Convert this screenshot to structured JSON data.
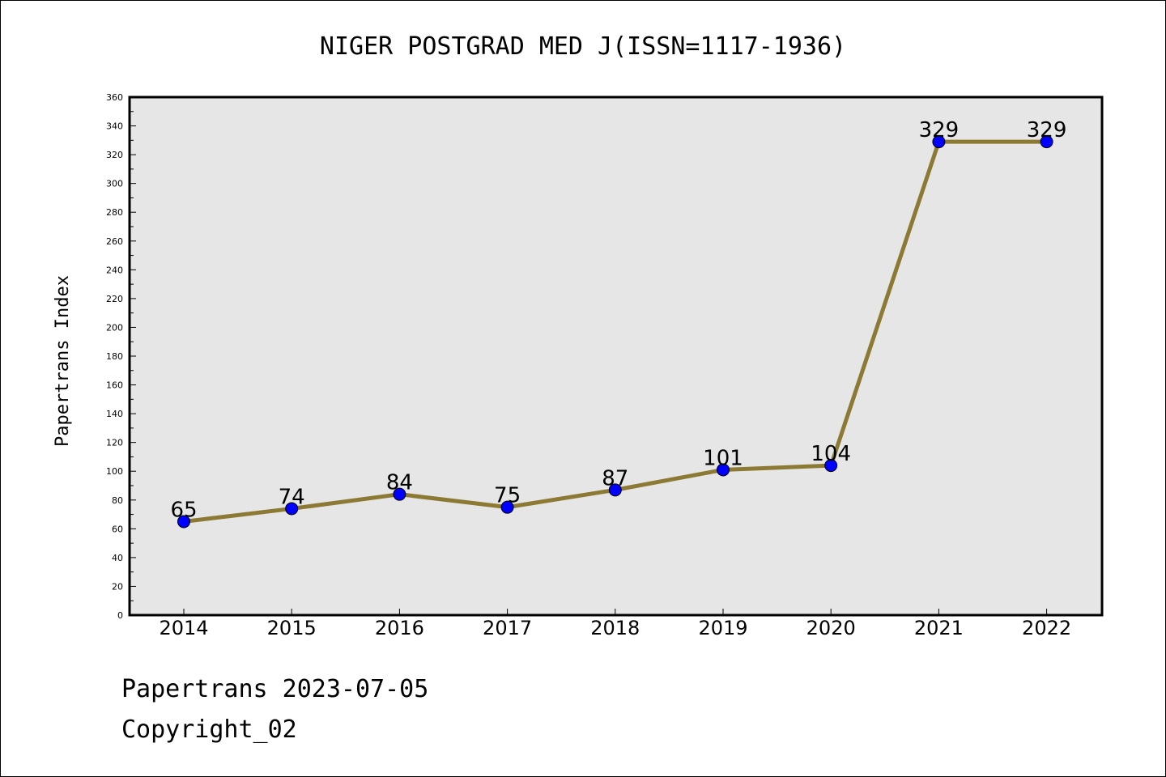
{
  "chart_data": {
    "type": "line",
    "title": "NIGER POSTGRAD MED J(ISSN=1117-1936)",
    "xlabel": "",
    "ylabel": "Papertrans Index",
    "categories": [
      "2014",
      "2015",
      "2016",
      "2017",
      "2018",
      "2019",
      "2020",
      "2021",
      "2022"
    ],
    "values": [
      65,
      74,
      84,
      75,
      87,
      101,
      104,
      329,
      329
    ],
    "data_labels": [
      "65",
      "74",
      "84",
      "75",
      "87",
      "101",
      "104",
      "329",
      "329"
    ],
    "ylim": [
      0,
      360
    ],
    "yticks": [
      0,
      20,
      40,
      60,
      80,
      100,
      120,
      140,
      160,
      180,
      200,
      220,
      240,
      260,
      280,
      300,
      320,
      340,
      360
    ],
    "grid": false,
    "colors": {
      "line": "#8c7a34",
      "marker": "#0000ff",
      "plot_background": "#e6e6e6"
    }
  },
  "footer": {
    "date_line": "Papertrans 2023-07-05",
    "copyright_line": "Copyright_02"
  }
}
